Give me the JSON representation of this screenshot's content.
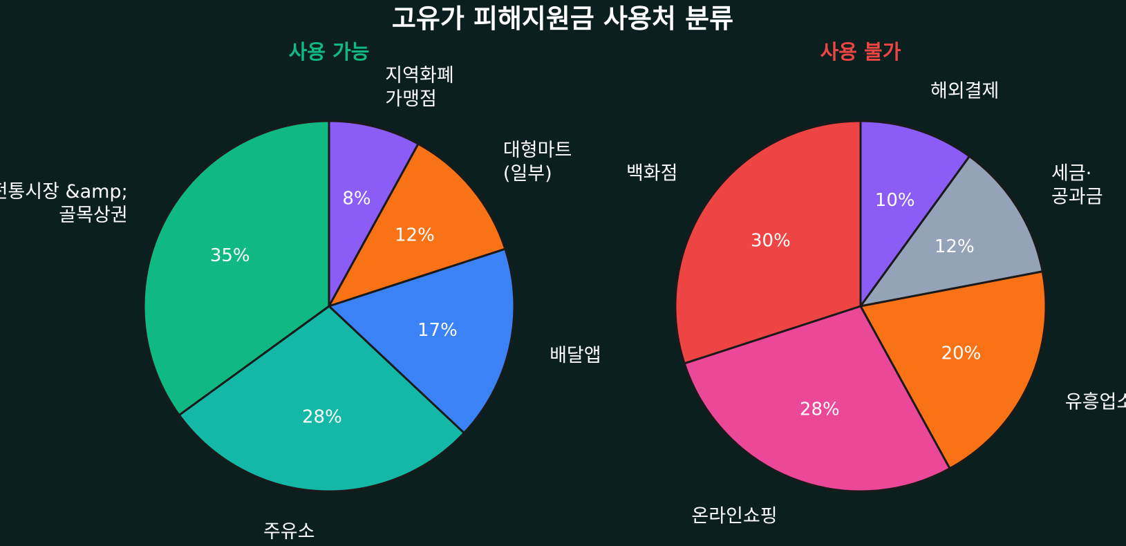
{
  "title": "고유가 피해지원금 사용처 분류",
  "chart_data": [
    {
      "type": "pie",
      "title": "사용 가능",
      "title_color": "#10b981",
      "start_angle": "12 o'clock",
      "direction": "clockwise",
      "slices": [
        {
          "label": "지역화폐\n가맹점",
          "value": 8,
          "pct_text": "8%",
          "color": "#8b5cf6"
        },
        {
          "label": "대형마트\n(일부)",
          "value": 12,
          "pct_text": "12%",
          "color": "#f97316"
        },
        {
          "label": "배달앱",
          "value": 17,
          "pct_text": "17%",
          "color": "#3b82f6"
        },
        {
          "label": "주유소",
          "value": 28,
          "pct_text": "28%",
          "color": "#14b8a6"
        },
        {
          "label": "전통시장 &amp;\n골목상권",
          "value": 35,
          "pct_text": "35%",
          "color": "#10b981"
        }
      ]
    },
    {
      "type": "pie",
      "title": "사용 불가",
      "title_color": "#ef4444",
      "start_angle": "12 o'clock",
      "direction": "clockwise",
      "slices": [
        {
          "label": "해외결제",
          "value": 10,
          "pct_text": "10%",
          "color": "#8b5cf6"
        },
        {
          "label": "세금·\n공과금",
          "value": 12,
          "pct_text": "12%",
          "color": "#94a3b8"
        },
        {
          "label": "유흥업소",
          "value": 20,
          "pct_text": "20%",
          "color": "#f97316"
        },
        {
          "label": "온라인쇼핑",
          "value": 28,
          "pct_text": "28%",
          "color": "#ec4899"
        },
        {
          "label": "백화점",
          "value": 30,
          "pct_text": "30%",
          "color": "#ef4444"
        }
      ]
    }
  ]
}
